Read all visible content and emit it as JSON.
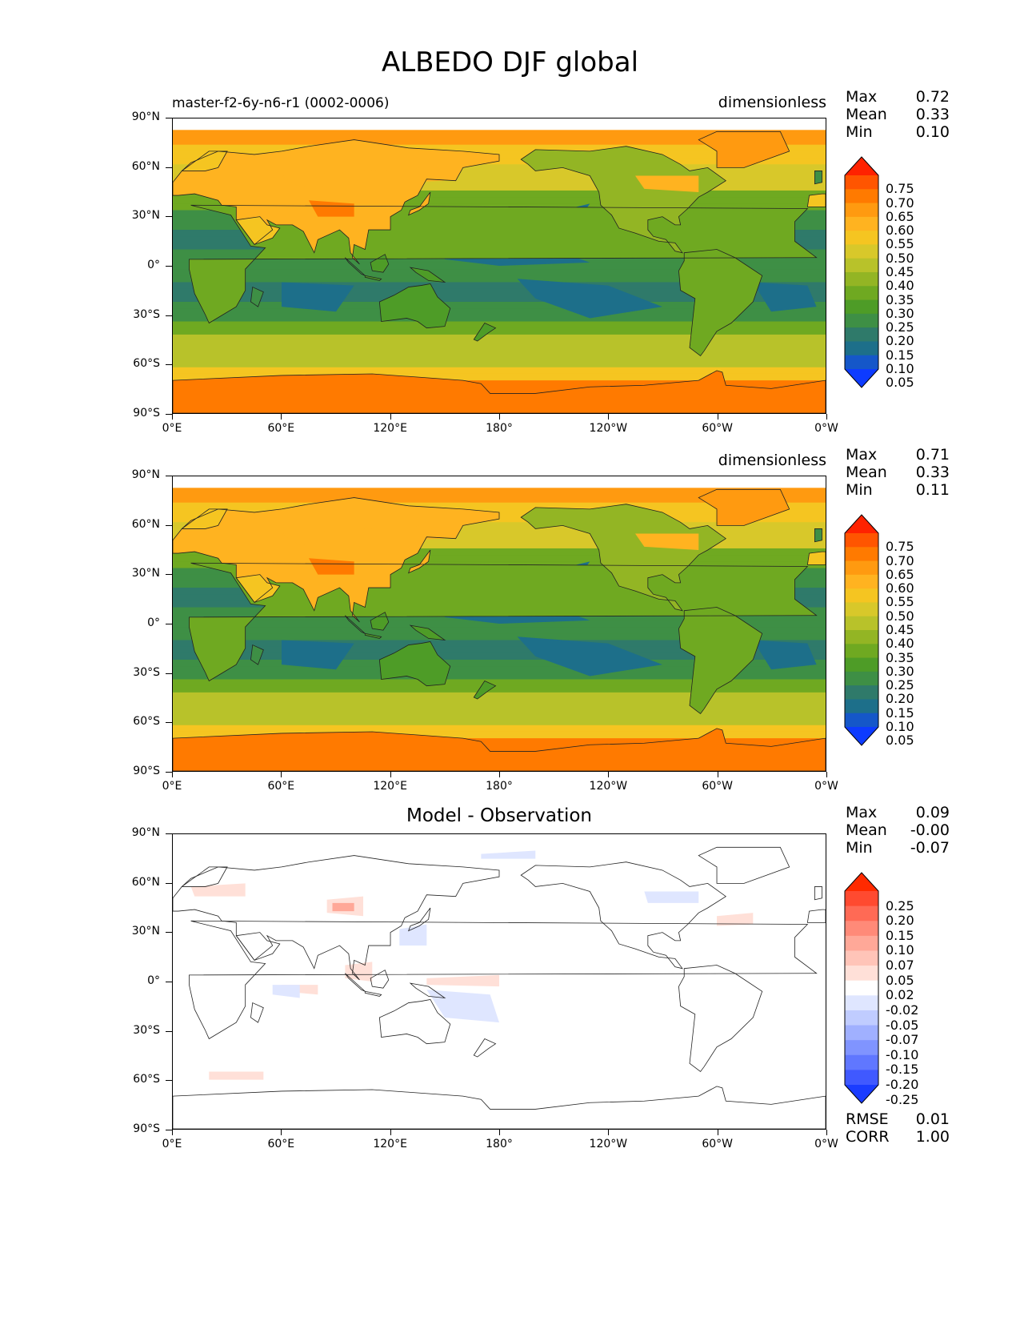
{
  "figure": {
    "title": "ALBEDO DJF global"
  },
  "axes": {
    "yticks": [
      "90°N",
      "60°N",
      "30°N",
      "0°",
      "30°S",
      "60°S",
      "90°S"
    ],
    "xticks": [
      "0°E",
      "60°E",
      "120°E",
      "180°",
      "120°W",
      "60°W",
      "0°W"
    ]
  },
  "panels": [
    {
      "id": "model",
      "left_title": "master-f2-6y-n6-r1 (0002-0006)",
      "center_title": "",
      "right_title": "dimensionless",
      "stats": [
        {
          "label": "Max",
          "value": "0.72"
        },
        {
          "label": "Mean",
          "value": "0.33"
        },
        {
          "label": "Min",
          "value": "0.10"
        }
      ],
      "colorbar": {
        "labels": [
          "0.75",
          "0.70",
          "0.65",
          "0.60",
          "0.55",
          "0.50",
          "0.45",
          "0.40",
          "0.35",
          "0.30",
          "0.25",
          "0.20",
          "0.15",
          "0.10",
          "0.05"
        ],
        "colors": [
          "#ff2200",
          "#ff5500",
          "#ff7a00",
          "#ff9a10",
          "#ffb320",
          "#f5c521",
          "#d8c82a",
          "#b8c22a",
          "#93b524",
          "#6fa921",
          "#4e9c27",
          "#3e8f45",
          "#2f7a6a",
          "#1d6f8a",
          "#1557c9",
          "#0d3bff"
        ]
      },
      "bottom_extra": []
    },
    {
      "id": "observation",
      "left_title": "",
      "center_title": "",
      "right_title": "dimensionless",
      "stats": [
        {
          "label": "Max",
          "value": "0.71"
        },
        {
          "label": "Mean",
          "value": "0.33"
        },
        {
          "label": "Min",
          "value": "0.11"
        }
      ],
      "colorbar": {
        "labels": [
          "0.75",
          "0.70",
          "0.65",
          "0.60",
          "0.55",
          "0.50",
          "0.45",
          "0.40",
          "0.35",
          "0.30",
          "0.25",
          "0.20",
          "0.15",
          "0.10",
          "0.05"
        ],
        "colors": [
          "#ff2200",
          "#ff5500",
          "#ff7a00",
          "#ff9a10",
          "#ffb320",
          "#f5c521",
          "#d8c82a",
          "#b8c22a",
          "#93b524",
          "#6fa921",
          "#4e9c27",
          "#3e8f45",
          "#2f7a6a",
          "#1d6f8a",
          "#1557c9",
          "#0d3bff"
        ]
      },
      "bottom_extra": []
    },
    {
      "id": "difference",
      "left_title": "",
      "center_title": "Model - Observation",
      "right_title": "",
      "stats": [
        {
          "label": "Max",
          "value": "0.09"
        },
        {
          "label": "Mean",
          "value": "-0.00"
        },
        {
          "label": "Min",
          "value": "-0.07"
        }
      ],
      "colorbar": {
        "labels": [
          "0.25",
          "0.20",
          "0.15",
          "0.10",
          "0.07",
          "0.05",
          "0.02",
          "-0.02",
          "-0.05",
          "-0.07",
          "-0.10",
          "-0.15",
          "-0.20",
          "-0.25"
        ],
        "colors": [
          "#ff2a00",
          "#ff4a30",
          "#ff6a55",
          "#ff8a78",
          "#ffa898",
          "#ffc4b8",
          "#ffe0d8",
          "#ffffff",
          "#dfe6ff",
          "#c0ccff",
          "#a0b0ff",
          "#8094ff",
          "#6077ff",
          "#4059ff",
          "#1a3cff"
        ]
      },
      "bottom_extra": [
        {
          "label": "RMSE",
          "value": "0.01"
        },
        {
          "label": "CORR",
          "value": "1.00"
        }
      ]
    }
  ],
  "map_data": {
    "projection": "cylindrical",
    "lon_range": [
      0,
      360
    ],
    "lat_range": [
      -90,
      90
    ],
    "variable": "ALBEDO",
    "season": "DJF"
  }
}
